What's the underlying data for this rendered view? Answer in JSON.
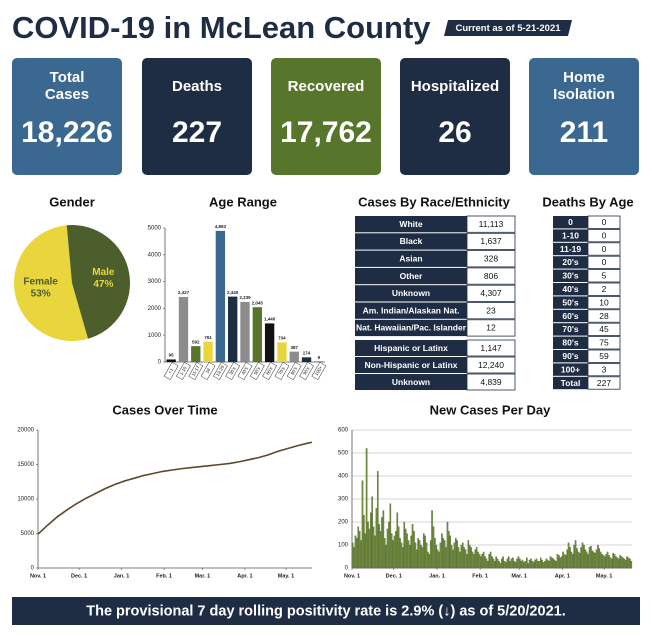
{
  "header": {
    "title": "COVID-19 in McLean County",
    "as_of": "Current as of 5-21-2021"
  },
  "cards": [
    {
      "title": "Total Cases",
      "value": "18,226",
      "color": "#3b6891"
    },
    {
      "title": "Deaths",
      "value": "227",
      "color": "#1f2d44"
    },
    {
      "title": "Recovered",
      "value": "17,762",
      "color": "#58752c"
    },
    {
      "title": "Hospitalized",
      "value": "26",
      "color": "#1f2d44"
    },
    {
      "title": "Home Isolation",
      "value": "211",
      "color": "#3b6891"
    }
  ],
  "chart_data": [
    {
      "type": "pie",
      "title": "Gender",
      "categories": [
        "Female",
        "Male"
      ],
      "values": [
        53,
        47
      ],
      "value_labels": [
        "53%",
        "47%"
      ],
      "colors": [
        "#e8d63c",
        "#4b5e2c"
      ],
      "label_colors": [
        "#4b5e2c",
        "#e8d63c"
      ]
    },
    {
      "type": "bar",
      "title": "Age Range",
      "categories": [
        "<1",
        "1-10",
        "11-17",
        "18",
        "19-29",
        "30's",
        "40's",
        "50's",
        "60's",
        "70's",
        "80's",
        "90's",
        "100+"
      ],
      "values": [
        95,
        2427,
        592,
        761,
        4893,
        2440,
        2239,
        2045,
        1440,
        734,
        387,
        174,
        9
      ],
      "value_labels": [
        "95",
        "2,427",
        "592",
        "761",
        "4,893",
        "2,440",
        "2,239",
        "2,045",
        "1,440",
        "734",
        "387",
        "174",
        "9"
      ],
      "colors": [
        "#111111",
        "#8c8c8c",
        "#58752c",
        "#e8d63c",
        "#3b6891",
        "#1f2d44",
        "#8c8c8c",
        "#58752c",
        "#111111",
        "#e8d63c",
        "#8c8c8c",
        "#1f2d44",
        "#111111"
      ],
      "ylim": [
        0,
        5000
      ],
      "yticks": [
        0,
        1000,
        2000,
        3000,
        4000,
        5000
      ]
    },
    {
      "type": "line",
      "title": "Cases Over Time",
      "color": "#5a4a28",
      "x": [
        0,
        7,
        14,
        21,
        28,
        35,
        42,
        49,
        56,
        63,
        70,
        77,
        84,
        91,
        98,
        105,
        112,
        119,
        126,
        133,
        140,
        147,
        154,
        161,
        168,
        175,
        182,
        189,
        196,
        200
      ],
      "values": [
        4900,
        6200,
        7400,
        8400,
        9300,
        10100,
        10800,
        11500,
        12100,
        12600,
        13000,
        13400,
        13700,
        14000,
        14200,
        14400,
        14550,
        14700,
        14850,
        15000,
        15150,
        15400,
        15700,
        16000,
        16400,
        16900,
        17300,
        17700,
        18050,
        18226
      ],
      "xlim": [
        0,
        200
      ],
      "xticks": [
        {
          "value": 0,
          "label": "Nov. 1"
        },
        {
          "value": 30,
          "label": "Dec. 1"
        },
        {
          "value": 61,
          "label": "Jan. 1"
        },
        {
          "value": 92,
          "label": "Feb. 1"
        },
        {
          "value": 120,
          "label": "Mar. 1"
        },
        {
          "value": 151,
          "label": "Apr. 1"
        },
        {
          "value": 181,
          "label": "May. 1"
        }
      ],
      "ylim": [
        0,
        20000
      ],
      "yticks": [
        0,
        5000,
        10000,
        15000,
        20000
      ]
    },
    {
      "type": "bar",
      "title": "New Cases Per Day",
      "color": "#6f8a3e",
      "grid": true,
      "values": [
        110,
        90,
        140,
        130,
        180,
        160,
        120,
        380,
        230,
        150,
        520,
        200,
        170,
        240,
        310,
        180,
        140,
        260,
        420,
        190,
        160,
        220,
        250,
        130,
        100,
        170,
        200,
        280,
        150,
        120,
        140,
        160,
        240,
        180,
        130,
        110,
        90,
        200,
        170,
        150,
        120,
        100,
        140,
        190,
        160,
        110,
        80,
        130,
        120,
        100,
        90,
        150,
        140,
        110,
        70,
        60,
        120,
        250,
        180,
        130,
        100,
        80,
        70,
        110,
        150,
        130,
        120,
        90,
        200,
        160,
        140,
        100,
        80,
        110,
        130,
        120,
        90,
        70,
        100,
        110,
        90,
        80,
        60,
        120,
        100,
        90,
        70,
        60,
        80,
        90,
        70,
        60,
        50,
        60,
        70,
        50,
        40,
        30,
        60,
        70,
        50,
        40,
        30,
        50,
        40,
        30,
        20,
        40,
        50,
        30,
        25,
        40,
        50,
        30,
        40,
        45,
        30,
        25,
        40,
        50,
        40,
        30,
        35,
        25,
        30,
        45,
        20,
        35,
        40,
        30,
        25,
        35,
        40,
        30,
        30,
        45,
        35,
        25,
        30,
        40,
        35,
        30,
        50,
        45,
        40,
        35,
        30,
        60,
        55,
        45,
        50,
        70,
        60,
        55,
        80,
        110,
        90,
        70,
        60,
        100,
        120,
        85,
        70,
        65,
        90,
        110,
        100,
        80,
        70,
        60,
        90,
        95,
        75,
        70,
        65,
        80,
        100,
        85,
        70,
        60,
        55,
        50,
        60,
        70,
        55,
        45,
        40,
        65,
        60,
        50,
        45,
        40,
        55,
        50,
        45,
        40,
        35,
        50,
        45,
        40,
        30
      ],
      "xlim": [
        0,
        201
      ],
      "xticks": [
        {
          "value": 0,
          "label": "Nov. 1"
        },
        {
          "value": 30,
          "label": "Dec. 1"
        },
        {
          "value": 61,
          "label": "Jan. 1"
        },
        {
          "value": 92,
          "label": "Feb. 1"
        },
        {
          "value": 120,
          "label": "Mar. 1"
        },
        {
          "value": 151,
          "label": "Apr. 1"
        },
        {
          "value": 181,
          "label": "May. 1"
        }
      ],
      "ylim": [
        0,
        600
      ],
      "yticks": [
        0,
        100,
        200,
        300,
        400,
        500,
        600
      ]
    }
  ],
  "race_table": {
    "title": "Cases By Race/Ethnicity",
    "rows": [
      [
        "White",
        "11,113"
      ],
      [
        "Black",
        "1,637"
      ],
      [
        "Asian",
        "328"
      ],
      [
        "Other",
        "806"
      ],
      [
        "Unknown",
        "4,307"
      ],
      [
        "Am. Indian/Alaskan Nat.",
        "23"
      ],
      [
        "Nat. Hawaiian/Pac. Islander",
        "12"
      ]
    ],
    "ethnicity_rows": [
      [
        "Hispanic or Latinx",
        "1,147"
      ],
      [
        "Non-Hispanic or Latinx",
        "12,240"
      ],
      [
        "Unknown",
        "4,839"
      ]
    ]
  },
  "deaths_by_age": {
    "title": "Deaths By Age",
    "rows": [
      [
        "0",
        "0"
      ],
      [
        "1-10",
        "0"
      ],
      [
        "11-19",
        "0"
      ],
      [
        "20's",
        "0"
      ],
      [
        "30's",
        "5"
      ],
      [
        "40's",
        "2"
      ],
      [
        "50's",
        "10"
      ],
      [
        "60's",
        "28"
      ],
      [
        "70's",
        "45"
      ],
      [
        "80's",
        "75"
      ],
      [
        "90's",
        "59"
      ],
      [
        "100+",
        "3"
      ],
      [
        "Total",
        "227"
      ]
    ]
  },
  "footer": {
    "text": "The provisional 7 day rolling positivity rate is 2.9% (↓) as of 5/20/2021."
  }
}
